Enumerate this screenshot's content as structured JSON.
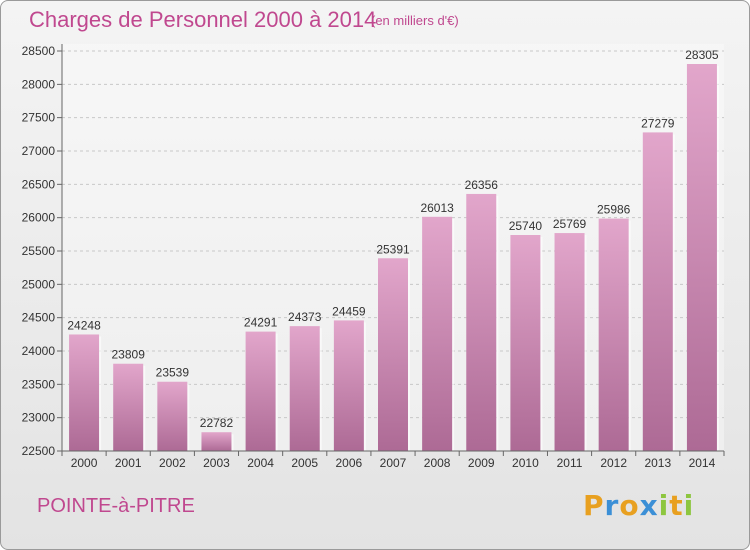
{
  "chart_data": {
    "type": "bar",
    "title": "Charges de Personnel 2000 à 2014",
    "subtitle": "(en milliers d'€)",
    "categories": [
      "2000",
      "2001",
      "2002",
      "2003",
      "2004",
      "2005",
      "2006",
      "2007",
      "2008",
      "2009",
      "2010",
      "2011",
      "2012",
      "2013",
      "2014"
    ],
    "values": [
      24248,
      23809,
      23539,
      22782,
      24291,
      24373,
      24459,
      25391,
      26013,
      26356,
      25740,
      25769,
      25986,
      27279,
      28305
    ],
    "ylim": [
      22500,
      28500
    ],
    "yticks": [
      22500,
      23000,
      23500,
      24000,
      24500,
      25000,
      25500,
      26000,
      26500,
      27000,
      27500,
      28000,
      28500
    ],
    "grid": true,
    "bar_color": "#c0669f"
  },
  "location": "POINTE-à-PITRE",
  "logo": {
    "letters": [
      "P",
      "r",
      "o",
      "x",
      "i",
      "t",
      "i"
    ],
    "colors": [
      "#e8a020",
      "#3b8fd6",
      "#e8a020",
      "#3b8fd6",
      "#8dc63f",
      "#e8a020",
      "#8dc63f"
    ]
  }
}
